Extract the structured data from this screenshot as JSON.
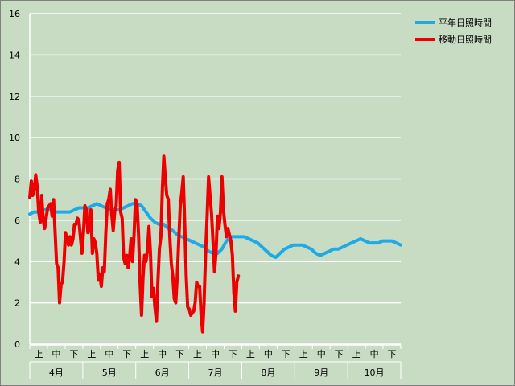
{
  "chart_data": {
    "type": "line",
    "title": "",
    "xlabel": "",
    "ylabel": "",
    "ylim": [
      0,
      16
    ],
    "yticks": [
      0,
      2,
      4,
      6,
      8,
      10,
      12,
      14,
      16
    ],
    "grid": true,
    "legend_position": "top-right",
    "months": [
      "4月",
      "5月",
      "6月",
      "7月",
      "8月",
      "9月",
      "10月"
    ],
    "periods": [
      "上",
      "中",
      "下"
    ],
    "series": [
      {
        "name": "平年日照時間",
        "color": "#1eaae6",
        "values": [
          [
            0,
            6.3
          ],
          [
            3,
            6.4
          ],
          [
            6,
            6.4
          ],
          [
            9,
            6.5
          ],
          [
            12,
            6.5
          ],
          [
            15,
            6.5
          ],
          [
            18,
            6.4
          ],
          [
            21,
            6.4
          ],
          [
            24,
            6.4
          ],
          [
            27,
            6.4
          ],
          [
            30,
            6.5
          ],
          [
            33,
            6.6
          ],
          [
            36,
            6.6
          ],
          [
            39,
            6.6
          ],
          [
            42,
            6.7
          ],
          [
            45,
            6.8
          ],
          [
            48,
            6.7
          ],
          [
            51,
            6.6
          ],
          [
            54,
            6.5
          ],
          [
            57,
            6.5
          ],
          [
            60,
            6.5
          ],
          [
            63,
            6.6
          ],
          [
            66,
            6.7
          ],
          [
            69,
            6.8
          ],
          [
            72,
            6.8
          ],
          [
            75,
            6.7
          ],
          [
            78,
            6.4
          ],
          [
            81,
            6.1
          ],
          [
            84,
            5.9
          ],
          [
            87,
            5.8
          ],
          [
            90,
            5.8
          ],
          [
            93,
            5.6
          ],
          [
            96,
            5.5
          ],
          [
            99,
            5.3
          ],
          [
            102,
            5.2
          ],
          [
            105,
            5.1
          ],
          [
            108,
            5.0
          ],
          [
            111,
            4.9
          ],
          [
            114,
            4.8
          ],
          [
            117,
            4.7
          ],
          [
            120,
            4.5
          ],
          [
            123,
            4.4
          ],
          [
            126,
            4.4
          ],
          [
            129,
            4.6
          ],
          [
            132,
            5.0
          ],
          [
            135,
            5.2
          ],
          [
            138,
            5.2
          ],
          [
            141,
            5.2
          ],
          [
            144,
            5.2
          ],
          [
            147,
            5.1
          ],
          [
            150,
            5.0
          ],
          [
            153,
            4.9
          ],
          [
            156,
            4.7
          ],
          [
            159,
            4.5
          ],
          [
            162,
            4.3
          ],
          [
            165,
            4.2
          ],
          [
            168,
            4.4
          ],
          [
            171,
            4.6
          ],
          [
            174,
            4.7
          ],
          [
            177,
            4.8
          ],
          [
            180,
            4.8
          ],
          [
            183,
            4.8
          ],
          [
            186,
            4.7
          ],
          [
            189,
            4.6
          ],
          [
            192,
            4.4
          ],
          [
            195,
            4.3
          ],
          [
            198,
            4.4
          ],
          [
            201,
            4.5
          ],
          [
            204,
            4.6
          ],
          [
            207,
            4.6
          ],
          [
            210,
            4.7
          ],
          [
            213,
            4.8
          ],
          [
            216,
            4.9
          ],
          [
            219,
            5.0
          ],
          [
            222,
            5.1
          ],
          [
            225,
            5.0
          ],
          [
            228,
            4.9
          ],
          [
            231,
            4.9
          ],
          [
            234,
            4.9
          ],
          [
            237,
            5.0
          ],
          [
            240,
            5.0
          ],
          [
            243,
            5.0
          ],
          [
            246,
            4.9
          ],
          [
            249,
            4.8
          ]
        ]
      },
      {
        "name": "移動日照時間",
        "color": "#ee0000",
        "values": [
          [
            0,
            7.1
          ],
          [
            1,
            7.9
          ],
          [
            2,
            7.2
          ],
          [
            3,
            7.5
          ],
          [
            4,
            8.2
          ],
          [
            5,
            7.6
          ],
          [
            6,
            6.4
          ],
          [
            7,
            5.9
          ],
          [
            8,
            7.2
          ],
          [
            9,
            6.0
          ],
          [
            10,
            5.6
          ],
          [
            12,
            6.6
          ],
          [
            14,
            6.8
          ],
          [
            15,
            6.2
          ],
          [
            16,
            7.0
          ],
          [
            17,
            5.4
          ],
          [
            18,
            3.9
          ],
          [
            19,
            3.7
          ],
          [
            20,
            2.0
          ],
          [
            21,
            2.9
          ],
          [
            22,
            3.0
          ],
          [
            23,
            4.0
          ],
          [
            24,
            5.4
          ],
          [
            25,
            5.0
          ],
          [
            26,
            4.8
          ],
          [
            27,
            5.2
          ],
          [
            28,
            4.8
          ],
          [
            29,
            5.1
          ],
          [
            30,
            5.8
          ],
          [
            31,
            5.8
          ],
          [
            32,
            6.1
          ],
          [
            33,
            6.0
          ],
          [
            34,
            5.2
          ],
          [
            35,
            4.4
          ],
          [
            36,
            5.4
          ],
          [
            37,
            6.7
          ],
          [
            38,
            6.5
          ],
          [
            39,
            5.4
          ],
          [
            40,
            5.5
          ],
          [
            41,
            6.5
          ],
          [
            42,
            4.4
          ],
          [
            43,
            5.1
          ],
          [
            44,
            4.9
          ],
          [
            45,
            4.4
          ],
          [
            46,
            3.1
          ],
          [
            47,
            3.4
          ],
          [
            48,
            2.8
          ],
          [
            49,
            3.7
          ],
          [
            50,
            3.5
          ],
          [
            51,
            5.3
          ],
          [
            52,
            6.8
          ],
          [
            53,
            7.0
          ],
          [
            54,
            7.5
          ],
          [
            55,
            6.3
          ],
          [
            56,
            5.5
          ],
          [
            57,
            6.4
          ],
          [
            58,
            6.7
          ],
          [
            59,
            8.4
          ],
          [
            60,
            8.8
          ],
          [
            61,
            6.4
          ],
          [
            62,
            6.1
          ],
          [
            63,
            4.2
          ],
          [
            64,
            3.9
          ],
          [
            65,
            4.3
          ],
          [
            66,
            3.7
          ],
          [
            67,
            4.2
          ],
          [
            68,
            5.1
          ],
          [
            69,
            4.0
          ],
          [
            70,
            5.3
          ],
          [
            71,
            7.0
          ],
          [
            72,
            6.8
          ],
          [
            73,
            5.3
          ],
          [
            74,
            3.0
          ],
          [
            75,
            1.4
          ],
          [
            76,
            3.2
          ],
          [
            77,
            4.3
          ],
          [
            78,
            4.0
          ],
          [
            79,
            4.6
          ],
          [
            80,
            5.7
          ],
          [
            81,
            4.4
          ],
          [
            82,
            2.3
          ],
          [
            83,
            2.7
          ],
          [
            84,
            1.8
          ],
          [
            85,
            1.1
          ],
          [
            86,
            3.0
          ],
          [
            87,
            4.6
          ],
          [
            88,
            5.2
          ],
          [
            89,
            7.5
          ],
          [
            90,
            9.1
          ],
          [
            91,
            8.0
          ],
          [
            92,
            7.2
          ],
          [
            93,
            7.0
          ],
          [
            94,
            5.2
          ],
          [
            95,
            3.9
          ],
          [
            96,
            3.3
          ],
          [
            97,
            2.2
          ],
          [
            98,
            2.0
          ],
          [
            99,
            3.3
          ],
          [
            100,
            5.0
          ],
          [
            101,
            6.7
          ],
          [
            102,
            7.3
          ],
          [
            103,
            8.1
          ],
          [
            104,
            5.9
          ],
          [
            105,
            3.3
          ],
          [
            106,
            1.8
          ],
          [
            107,
            1.7
          ],
          [
            108,
            1.4
          ],
          [
            109,
            1.5
          ],
          [
            110,
            1.6
          ],
          [
            111,
            2.0
          ],
          [
            112,
            3.0
          ],
          [
            113,
            2.8
          ],
          [
            114,
            2.8
          ],
          [
            115,
            1.4
          ],
          [
            116,
            0.6
          ],
          [
            117,
            2.0
          ],
          [
            118,
            4.4
          ],
          [
            119,
            6.1
          ],
          [
            120,
            8.1
          ],
          [
            121,
            7.2
          ],
          [
            122,
            6.3
          ],
          [
            123,
            5.0
          ],
          [
            124,
            3.5
          ],
          [
            125,
            4.4
          ],
          [
            126,
            6.2
          ],
          [
            127,
            5.6
          ],
          [
            128,
            6.4
          ],
          [
            129,
            8.1
          ],
          [
            130,
            6.5
          ],
          [
            131,
            5.8
          ],
          [
            132,
            5.2
          ],
          [
            133,
            5.6
          ],
          [
            134,
            5.3
          ],
          [
            135,
            5.0
          ],
          [
            136,
            4.3
          ],
          [
            137,
            2.5
          ],
          [
            138,
            1.6
          ],
          [
            139,
            3.0
          ],
          [
            140,
            3.3
          ]
        ]
      }
    ]
  }
}
